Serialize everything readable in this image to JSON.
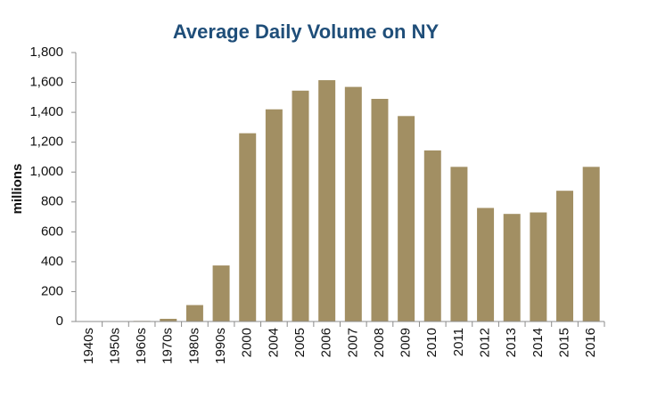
{
  "chart_data": {
    "type": "bar",
    "title": "Average Daily Volume on NY",
    "y_label": "millions",
    "categories": [
      "1940s",
      "1950s",
      "1960s",
      "1970s",
      "1980s",
      "1990s",
      "2000",
      "2004",
      "2005",
      "2006",
      "2007",
      "2008",
      "2009",
      "2010",
      "2011",
      "2012",
      "2013",
      "2014",
      "2015",
      "2016"
    ],
    "values": [
      1,
      2,
      4,
      18,
      110,
      375,
      1260,
      1420,
      1545,
      1615,
      1570,
      1490,
      1375,
      1145,
      1035,
      760,
      720,
      730,
      875,
      1035
    ],
    "color": "#a28f63",
    "ylim": [
      0,
      1800
    ],
    "yticks": [
      0,
      200,
      400,
      600,
      800,
      {
        "value": 1000,
        "label": "1,000"
      },
      {
        "value": 1200,
        "label": "1,200"
      },
      {
        "value": 1400,
        "label": "1,400"
      },
      {
        "value": 1600,
        "label": "1,600"
      },
      {
        "value": 1800,
        "label": "1,800"
      }
    ],
    "grid": false
  }
}
